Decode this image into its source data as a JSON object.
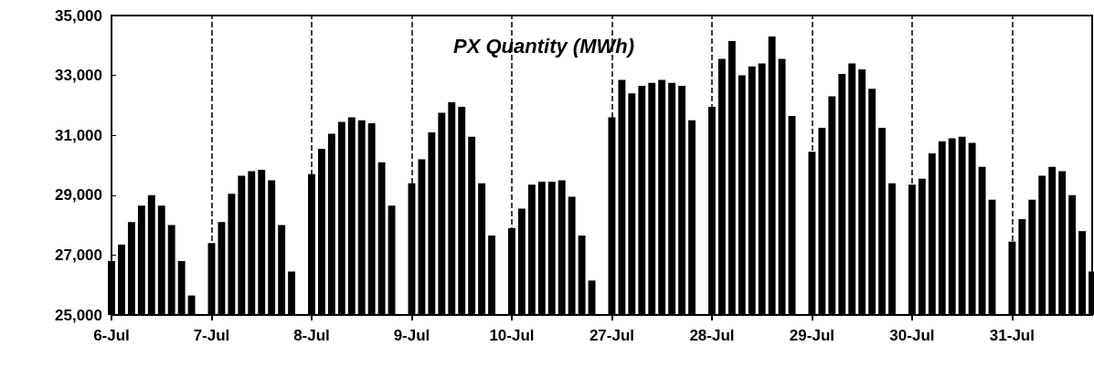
{
  "chart_data": {
    "type": "bar",
    "title": "PX Quantity (MWh)",
    "categories": [
      "6-Jul",
      null,
      null,
      null,
      null,
      null,
      null,
      null,
      null,
      null,
      "7-Jul",
      null,
      null,
      null,
      null,
      null,
      null,
      null,
      null,
      null,
      "8-Jul",
      null,
      null,
      null,
      null,
      null,
      null,
      null,
      null,
      null,
      "9-Jul",
      null,
      null,
      null,
      null,
      null,
      null,
      null,
      null,
      null,
      "10-Jul",
      null,
      null,
      null,
      null,
      null,
      null,
      null,
      null,
      null,
      "27-Jul",
      null,
      null,
      null,
      null,
      null,
      null,
      null,
      null,
      null,
      "28-Jul",
      null,
      null,
      null,
      null,
      null,
      null,
      null,
      null,
      null,
      "29-Jul",
      null,
      null,
      null,
      null,
      null,
      null,
      null,
      null,
      null,
      "30-Jul",
      null,
      null,
      null,
      null,
      null,
      null,
      null,
      null,
      null,
      "31-Jul",
      null,
      null,
      null,
      null,
      null,
      null,
      null,
      null
    ],
    "values": [
      26800,
      27350,
      28100,
      28650,
      29000,
      28650,
      28000,
      26800,
      25650,
      null,
      27400,
      28100,
      29050,
      29650,
      29800,
      29850,
      29500,
      28000,
      26450,
      null,
      29700,
      30550,
      31050,
      31450,
      31600,
      31500,
      31400,
      30100,
      28650,
      null,
      29400,
      30200,
      31100,
      31750,
      32100,
      31950,
      30950,
      29400,
      27650,
      null,
      27900,
      28550,
      29350,
      29450,
      29450,
      29500,
      28950,
      27650,
      26150,
      null,
      31600,
      32850,
      32400,
      32650,
      32750,
      32850,
      32750,
      32650,
      31500,
      null,
      31950,
      33550,
      34150,
      33000,
      33300,
      33400,
      34300,
      33550,
      31650,
      null,
      30450,
      31250,
      32300,
      33050,
      33400,
      33200,
      32550,
      31250,
      29400,
      null,
      29350,
      29550,
      30400,
      30800,
      30900,
      30950,
      30750,
      29950,
      28850,
      null,
      27450,
      28200,
      28850,
      29650,
      29950,
      29800,
      29000,
      27800,
      26450
    ],
    "color": "#000000",
    "ylim": [
      25000,
      35000
    ],
    "yticks": [
      {
        "value": 25000,
        "label": "25,000"
      },
      {
        "value": 27000,
        "label": "27,000"
      },
      {
        "value": 29000,
        "label": "29,000"
      },
      {
        "value": 31000,
        "label": "31,000"
      },
      {
        "value": 33000,
        "label": "33,000"
      },
      {
        "value": 35000,
        "label": "35,000"
      }
    ],
    "ref_lines": [
      {
        "axis": "x",
        "value": "7-Jul",
        "line_style": "dashed",
        "color": "#000000"
      },
      {
        "axis": "x",
        "value": "8-Jul",
        "line_style": "dashed",
        "color": "#000000"
      },
      {
        "axis": "x",
        "value": "9-Jul",
        "line_style": "dashed",
        "color": "#000000"
      },
      {
        "axis": "x",
        "value": "10-Jul",
        "line_style": "dashed",
        "color": "#000000"
      },
      {
        "axis": "x",
        "value": "27-Jul",
        "line_style": "dashed",
        "color": "#000000"
      },
      {
        "axis": "x",
        "value": "28-Jul",
        "line_style": "dashed",
        "color": "#000000"
      },
      {
        "axis": "x",
        "value": "29-Jul",
        "line_style": "dashed",
        "color": "#000000"
      },
      {
        "axis": "x",
        "value": "30-Jul",
        "line_style": "dashed",
        "color": "#000000"
      },
      {
        "axis": "x",
        "value": "31-Jul",
        "line_style": "dashed",
        "color": "#000000"
      }
    ],
    "grid": false
  }
}
